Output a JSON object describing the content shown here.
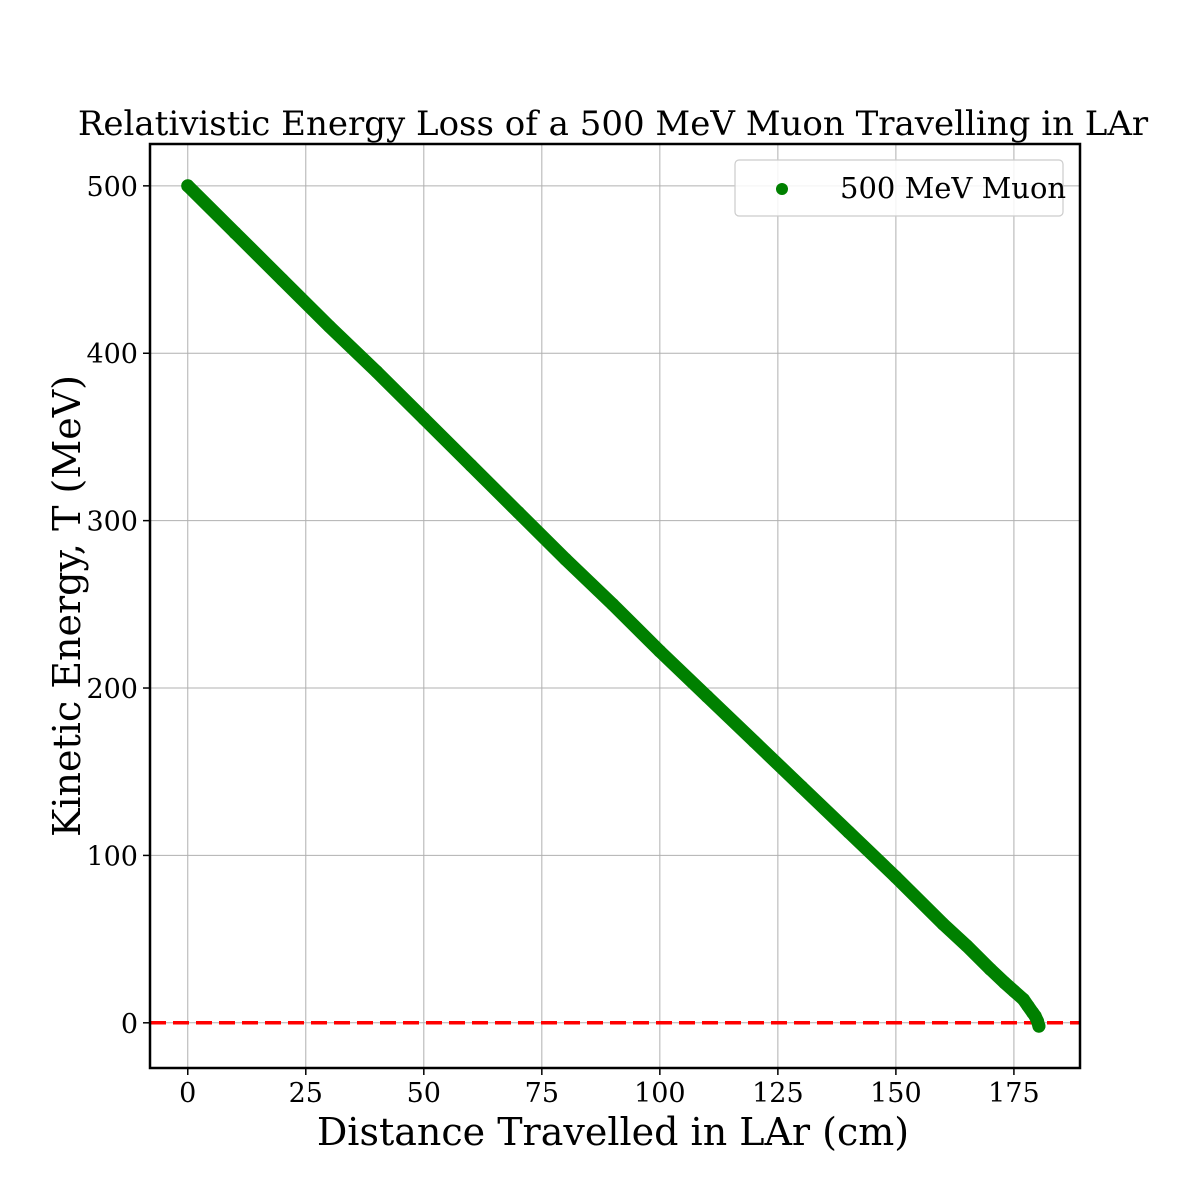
{
  "chart_data": {
    "type": "scatter",
    "title": "Relativistic Energy Loss of a 500 MeV Muon Travelling in LAr",
    "xlabel": "Distance Travelled in LAr (cm)",
    "ylabel": "Kinetic Energy, T (MeV)",
    "xlim": [
      -8,
      189
    ],
    "ylim": [
      -27,
      525
    ],
    "xticks": [
      0,
      25,
      50,
      75,
      100,
      125,
      150,
      175
    ],
    "yticks": [
      0,
      100,
      200,
      300,
      400,
      500
    ],
    "grid": true,
    "legend_position": "top-right",
    "series": [
      {
        "name": "500 MeV Muon",
        "color": "#008000",
        "marker": "circle",
        "x": [
          0,
          10,
          20,
          30,
          40,
          50,
          60,
          70,
          80,
          90,
          100,
          110,
          120,
          130,
          140,
          150,
          160,
          165,
          170,
          173,
          175,
          177,
          178,
          179,
          179.5,
          180,
          180.3
        ],
        "y": [
          500,
          472,
          444,
          416,
          389,
          361,
          333,
          305,
          277,
          250,
          222,
          195,
          168,
          141,
          114,
          87,
          59,
          46,
          32,
          24,
          19,
          14,
          10,
          6,
          4,
          1,
          -2
        ]
      }
    ],
    "reference_line": {
      "y": 0,
      "color": "#ff0000",
      "style": "dashed"
    }
  }
}
